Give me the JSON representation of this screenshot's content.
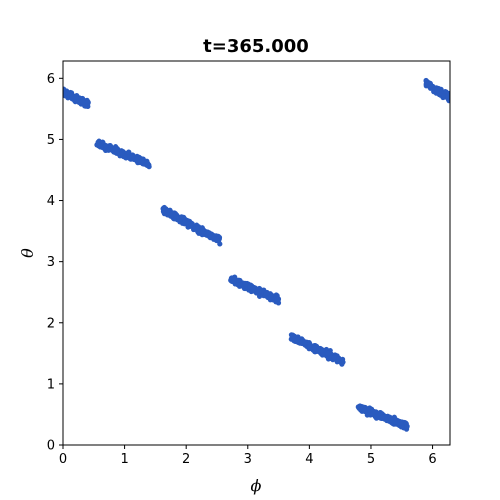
{
  "chart_data": {
    "type": "scatter",
    "title": "t=365.000",
    "xlabel": "ϕ",
    "ylabel": "θ",
    "xlim": [
      0,
      6.2832
    ],
    "ylim": [
      0,
      6.2832
    ],
    "xticks": [
      "0",
      "1",
      "2",
      "3",
      "4",
      "5",
      "6"
    ],
    "yticks": [
      "0",
      "1",
      "2",
      "3",
      "4",
      "5",
      "6"
    ],
    "grid": false,
    "legend": "none",
    "point_color": "#2a5bbf",
    "series": [
      {
        "clusters": [
          {
            "phi_range": [
              0.0,
              0.4
            ],
            "theta_range": [
              5.78,
              5.58
            ],
            "count": 120
          },
          {
            "phi_range": [
              0.55,
              1.4
            ],
            "theta_range": [
              4.93,
              4.6
            ],
            "count": 220
          },
          {
            "phi_range": [
              1.62,
              2.55
            ],
            "theta_range": [
              3.85,
              3.35
            ],
            "count": 240
          },
          {
            "phi_range": [
              2.72,
              3.5
            ],
            "theta_range": [
              2.72,
              2.38
            ],
            "count": 220
          },
          {
            "phi_range": [
              3.7,
              4.55
            ],
            "theta_range": [
              1.77,
              1.36
            ],
            "count": 220
          },
          {
            "phi_range": [
              4.8,
              5.6
            ],
            "theta_range": [
              0.62,
              0.3
            ],
            "count": 220
          },
          {
            "phi_range": [
              5.9,
              6.2832
            ],
            "theta_range": [
              5.92,
              5.68
            ],
            "count": 120
          }
        ]
      }
    ]
  }
}
